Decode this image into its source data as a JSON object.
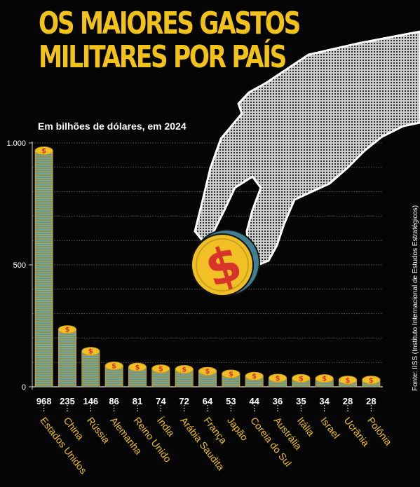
{
  "title_line1": "OS MAIORES GASTOS",
  "title_line2": "MILITARES POR PAÍS",
  "source": "Fonte: IISS (Instituto Internacional de Estudos Estratégicos)",
  "colors": {
    "title": "#f2c21b",
    "coin_edge": "#d4a21a",
    "coin_stack": "#5f9aa0",
    "coin_face": "#f1c024",
    "coin_symbol": "#d8342c",
    "background": "#050505"
  },
  "chart_data": {
    "type": "bar",
    "title": "OS MAIORES GASTOS MILITARES POR PAÍS",
    "subtitle": "Em bilhões de dólares, em 2024",
    "xlabel": "",
    "ylabel": "",
    "ylim": [
      0,
      1000
    ],
    "yticks": [
      {
        "value": 0,
        "label": "0"
      },
      {
        "value": 500,
        "label": "500"
      },
      {
        "value": 1000,
        "label": "1.000"
      }
    ],
    "gridlines": [
      100,
      200,
      300,
      400,
      500,
      600,
      700,
      800,
      900,
      1000
    ],
    "categories": [
      "Estados Unidos",
      "China",
      "Rússia",
      "Alemanha",
      "Reino Unido",
      "Índia",
      "Arábia Saudita",
      "França",
      "Japão",
      "Coreia do Sul",
      "Austrália",
      "Itália",
      "Israel",
      "Ucrânia",
      "Polônia"
    ],
    "values": [
      968,
      235,
      146,
      86,
      81,
      74,
      72,
      64,
      53,
      44,
      36,
      35,
      34,
      28,
      28
    ],
    "grid": true,
    "legend": "none"
  }
}
